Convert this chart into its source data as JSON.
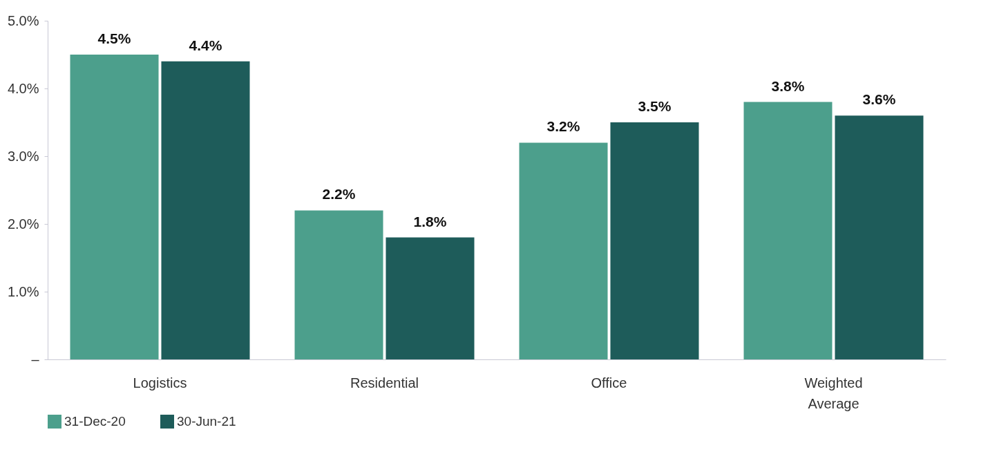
{
  "chart_data": {
    "type": "bar",
    "categories": [
      "Logistics",
      "Residential",
      "Office",
      "Weighted Average"
    ],
    "series": [
      {
        "name": "31-Dec-20",
        "color": "#4c9f8c",
        "values": [
          4.5,
          2.2,
          3.2,
          3.8
        ],
        "value_labels": [
          "4.5%",
          "2.2%",
          "3.2%",
          "3.8%"
        ]
      },
      {
        "name": "30-Jun-21",
        "color": "#1e5c5a",
        "values": [
          4.4,
          1.8,
          3.5,
          3.6
        ],
        "value_labels": [
          "4.4%",
          "1.8%",
          "3.5%",
          "3.6%"
        ]
      }
    ],
    "ylim": [
      0,
      5
    ],
    "yticks": [
      {
        "value": 0,
        "label": "–"
      },
      {
        "value": 1,
        "label": "1.0%"
      },
      {
        "value": 2,
        "label": "2.0%"
      },
      {
        "value": 3,
        "label": "3.0%"
      },
      {
        "value": 4,
        "label": "4.0%"
      },
      {
        "value": 5,
        "label": "5.0%"
      }
    ],
    "grid": false,
    "legend": "bottom left"
  }
}
